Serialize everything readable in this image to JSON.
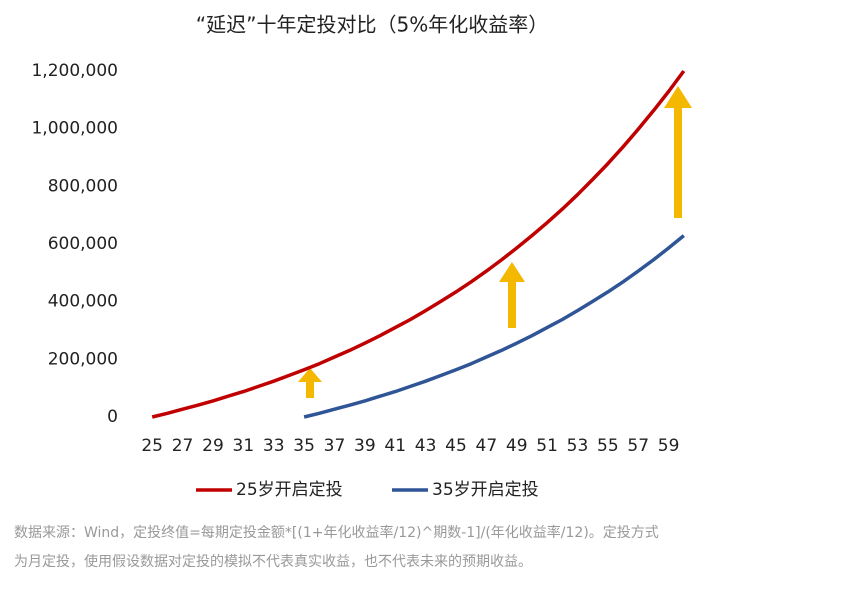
{
  "chart_data": {
    "type": "line",
    "title": "“延迟”十年定投对比（5%年化收益率）",
    "x": [
      25,
      26,
      27,
      28,
      29,
      30,
      31,
      32,
      33,
      34,
      35,
      36,
      37,
      38,
      39,
      40,
      41,
      42,
      43,
      44,
      45,
      46,
      47,
      48,
      49,
      50,
      51,
      52,
      53,
      54,
      55,
      56,
      57,
      58,
      59,
      60
    ],
    "xlim": [
      24,
      61
    ],
    "xticks": [
      25,
      27,
      29,
      31,
      33,
      35,
      37,
      39,
      41,
      43,
      45,
      47,
      49,
      51,
      53,
      55,
      57,
      59
    ],
    "ylim": [
      0,
      1200000
    ],
    "yticks": [
      0,
      {
        "value": 200000,
        "label": "200,000"
      },
      {
        "value": 400000,
        "label": "400,000"
      },
      {
        "value": 600000,
        "label": "600,000"
      },
      {
        "value": 800000,
        "label": "800,000"
      },
      {
        "value": 1000000,
        "label": "1,000,000"
      },
      {
        "value": 1200000,
        "label": "1,200,000"
      }
    ],
    "series": [
      {
        "name": "25岁开启定投",
        "color": "#c00000",
        "values": [
          0,
          13000,
          27000,
          41000,
          56000,
          72000,
          88000,
          106000,
          124000,
          144000,
          164000,
          185000,
          208000,
          231000,
          256000,
          282000,
          310000,
          338000,
          369000,
          401000,
          434000,
          469000,
          506000,
          545000,
          586000,
          629000,
          674000,
          721000,
          771000,
          824000,
          879000,
          937000,
          998000,
          1062000,
          1129000,
          1200000
        ]
      },
      {
        "name": "35岁开启定投",
        "color": "#2f5597",
        "values": [
          null,
          null,
          null,
          null,
          null,
          null,
          null,
          null,
          null,
          null,
          0,
          13000,
          27000,
          41000,
          56000,
          72000,
          88000,
          106000,
          124000,
          144000,
          164000,
          185000,
          208000,
          231000,
          256000,
          282000,
          310000,
          338000,
          369000,
          401000,
          434000,
          469000,
          506000,
          545000,
          586000,
          629000
        ]
      }
    ],
    "footnote": [
      "数据来源：Wind，定投终值=每期定投金额*[(1+年化收益率/12)^期数-1]/(年化收益率/12)。定投方式",
      "为月定投，使用假设数据对定投的模拟不代表真实收益，也不代表未来的预期收益。"
    ]
  }
}
